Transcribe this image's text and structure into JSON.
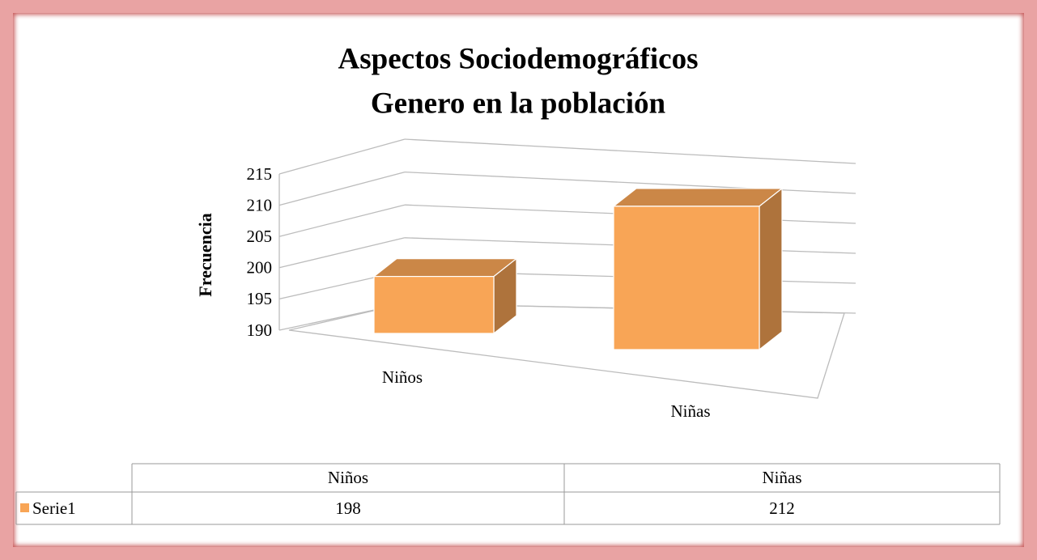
{
  "chart_data": {
    "type": "bar3d",
    "title": [
      "Aspectos Sociodemográficos",
      "Genero en la población"
    ],
    "y_label": "Frecuencia",
    "categories": [
      "Niños",
      "Niñas"
    ],
    "series": [
      {
        "name": "Serie1",
        "color": "#f8a556",
        "values": [
          198,
          212
        ]
      }
    ],
    "ylim": [
      190,
      215
    ],
    "yticks": [
      190,
      195,
      200,
      205,
      210,
      215
    ],
    "grid": true,
    "data_table": true
  }
}
